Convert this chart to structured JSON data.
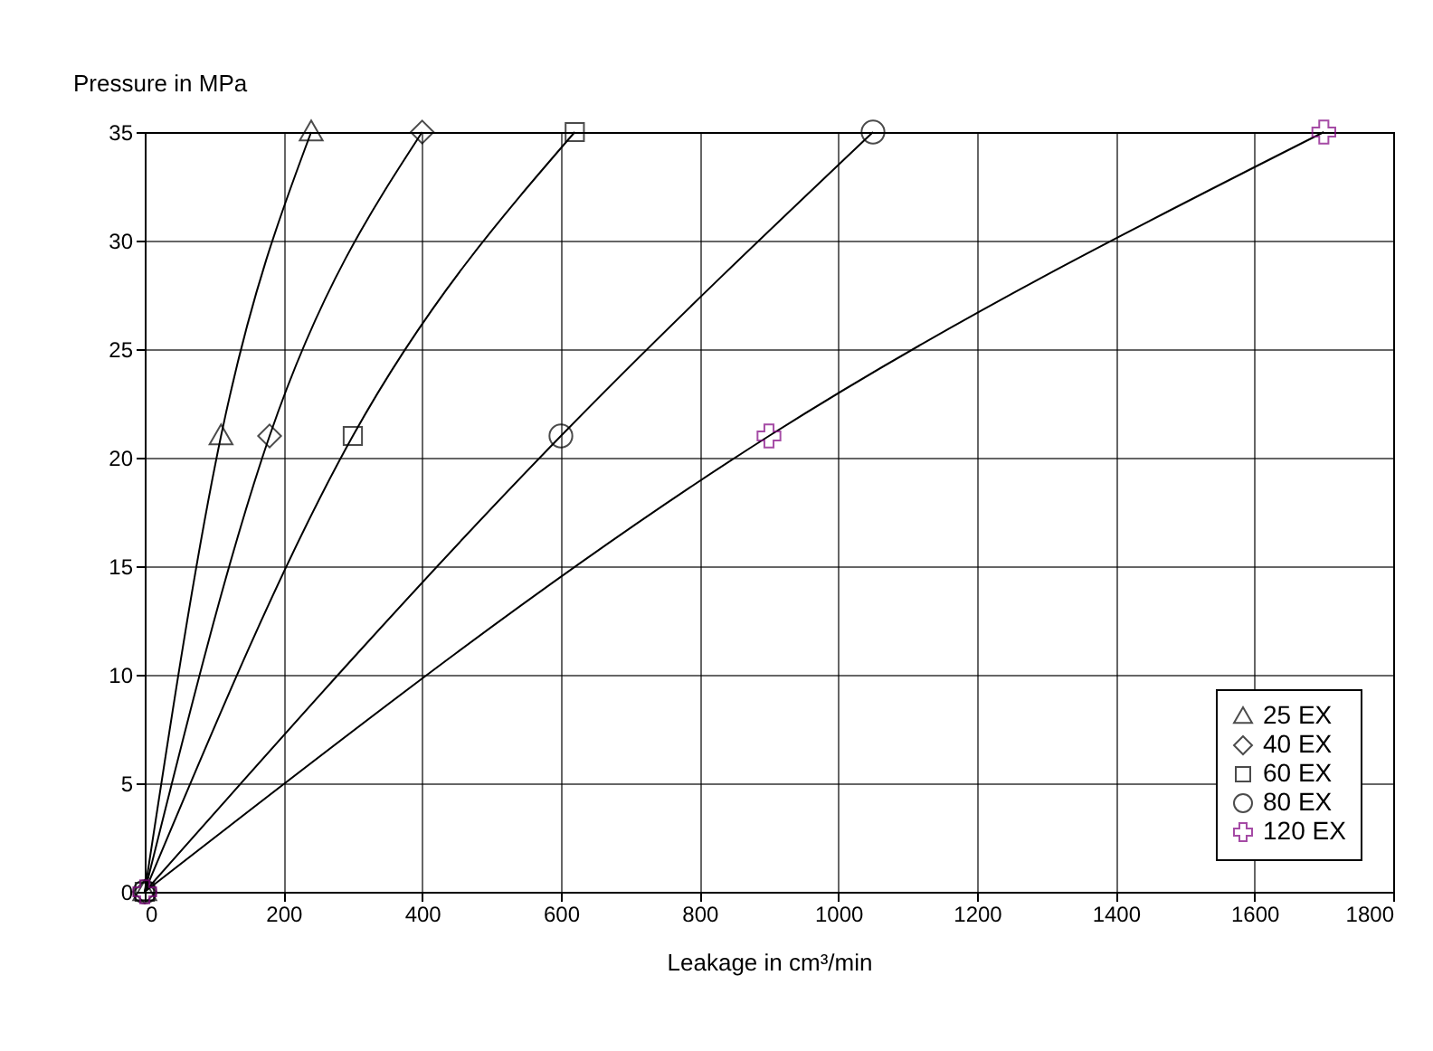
{
  "chart_data": {
    "type": "line",
    "xlabel": "Leakage in cm³/min",
    "ylabel": "Pressure in MPa",
    "xlim": [
      0,
      1800
    ],
    "xticks": [
      0,
      200,
      400,
      600,
      800,
      1000,
      1200,
      1400,
      1600,
      1800
    ],
    "ylim": [
      0,
      35
    ],
    "yticks": [
      0,
      5,
      10,
      15,
      20,
      25,
      30,
      35
    ],
    "grid": true,
    "legend": "bottom right",
    "series": [
      {
        "name": "25 EX",
        "color": "#000000",
        "marker": "triangle",
        "x": [
          0,
          110,
          240
        ],
        "values": [
          0,
          21,
          35
        ]
      },
      {
        "name": "40 EX",
        "color": "#000000",
        "marker": "diamond",
        "x": [
          0,
          180,
          400
        ],
        "values": [
          0,
          21,
          35
        ]
      },
      {
        "name": "60 EX",
        "color": "#000000",
        "marker": "square",
        "x": [
          0,
          300,
          620
        ],
        "values": [
          0,
          21,
          35
        ]
      },
      {
        "name": "80 EX",
        "color": "#000000",
        "marker": "circle",
        "x": [
          0,
          600,
          1050
        ],
        "values": [
          0,
          21,
          35
        ]
      },
      {
        "name": "120 EX",
        "color": "#800080",
        "marker": "cross",
        "x": [
          0,
          900,
          1700
        ],
        "values": [
          0,
          21,
          35
        ]
      }
    ]
  }
}
